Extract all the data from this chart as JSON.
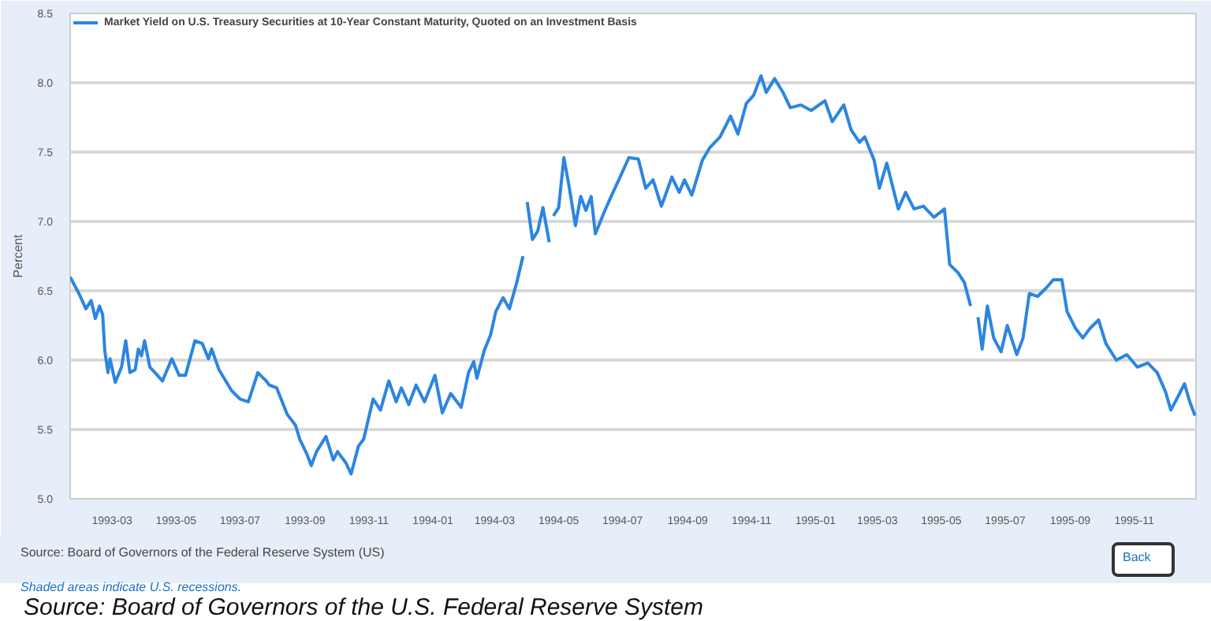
{
  "chart_data": {
    "type": "line",
    "ylabel": "Percent",
    "x": [
      "1993-01-20",
      "1993-01-29",
      "1993-02-04",
      "1993-02-09",
      "1993-02-13",
      "1993-02-17",
      "1993-02-20",
      "1993-02-22",
      "1993-02-25",
      "1993-02-27",
      "1993-03-04",
      "1993-03-10",
      "1993-03-14",
      "1993-03-18",
      "1993-03-23",
      "1993-03-26",
      "1993-03-29",
      "1993-04-01",
      "1993-04-06",
      "1993-04-11",
      "1993-04-18",
      "1993-04-27",
      "1993-05-04",
      "1993-05-10",
      "1993-05-19",
      "1993-05-26",
      "1993-06-01",
      "1993-06-04",
      "1993-06-11",
      "1993-06-23",
      "1993-07-01",
      "1993-07-09",
      "1993-07-18",
      "1993-07-26",
      "1993-07-29",
      "1993-08-05",
      "1993-08-15",
      "1993-08-23",
      "1993-08-27",
      "1993-09-03",
      "1993-09-07",
      "1993-09-12",
      "1993-09-21",
      "1993-09-28",
      "1993-10-02",
      "1993-10-10",
      "1993-10-15",
      "1993-10-22",
      "1993-10-27",
      "1993-11-05",
      "1993-11-12",
      "1993-11-20",
      "1993-11-27",
      "1993-12-02",
      "1993-12-09",
      "1993-12-16",
      "1993-12-24",
      "1994-01-03",
      "1994-01-10",
      "1994-01-18",
      "1994-01-28",
      "1994-02-04",
      "1994-02-09",
      "1994-02-12",
      "1994-02-19",
      "1994-02-25",
      "1994-03-02",
      "1994-03-09",
      "1994-03-15",
      "1994-03-22",
      "1994-03-28",
      "1994-03-30",
      "1994-04-01",
      "1994-04-06",
      "1994-04-11",
      "1994-04-16",
      "1994-04-22",
      "1994-04-24",
      "1994-04-26",
      "1994-05-01",
      "1994-05-06",
      "1994-05-11",
      "1994-05-17",
      "1994-05-22",
      "1994-05-27",
      "1994-06-01",
      "1994-06-05",
      "1994-06-13",
      "1994-06-20",
      "1994-06-28",
      "1994-07-07",
      "1994-07-16",
      "1994-07-23",
      "1994-07-30",
      "1994-08-07",
      "1994-08-17",
      "1994-08-24",
      "1994-08-29",
      "1994-09-05",
      "1994-09-15",
      "1994-09-22",
      "1994-10-02",
      "1994-10-12",
      "1994-10-19",
      "1994-10-27",
      "1994-11-03",
      "1994-11-10",
      "1994-11-15",
      "1994-11-23",
      "1994-12-01",
      "1994-12-08",
      "1994-12-18",
      "1994-12-28",
      "1995-01-10",
      "1995-01-17",
      "1995-01-28",
      "1995-02-04",
      "1995-02-12",
      "1995-02-17",
      "1995-02-26",
      "1995-03-03",
      "1995-03-10",
      "1995-03-21",
      "1995-03-28",
      "1995-04-05",
      "1995-04-14",
      "1995-04-24",
      "1995-05-04",
      "1995-05-09",
      "1995-05-17",
      "1995-05-23",
      "1995-05-29",
      "1995-06-01",
      "1995-06-05",
      "1995-06-09",
      "1995-06-14",
      "1995-06-20",
      "1995-06-27",
      "1995-07-03",
      "1995-07-12",
      "1995-07-18",
      "1995-07-24",
      "1995-08-01",
      "1995-08-09",
      "1995-08-16",
      "1995-08-24",
      "1995-08-29",
      "1995-09-06",
      "1995-09-13",
      "1995-09-20",
      "1995-09-28",
      "1995-10-05",
      "1995-10-15",
      "1995-10-25",
      "1995-11-04",
      "1995-11-14",
      "1995-11-23",
      "1995-12-01",
      "1995-12-06",
      "1995-12-13",
      "1995-12-19",
      "1995-12-24",
      "1995-12-29"
    ],
    "series": [
      {
        "name": "Market Yield on U.S. Treasury Securities at 10-Year Constant Maturity, Quoted on an Investment Basis",
        "color": "#2c85e0",
        "values": [
          6.6,
          6.47,
          6.37,
          6.43,
          6.3,
          6.39,
          6.33,
          6.07,
          5.91,
          6.01,
          5.84,
          5.95,
          6.14,
          5.91,
          5.93,
          6.08,
          6.03,
          6.14,
          5.95,
          5.91,
          5.85,
          6.01,
          5.89,
          5.89,
          6.14,
          6.12,
          6.01,
          6.08,
          5.93,
          5.78,
          5.72,
          5.7,
          5.91,
          5.85,
          5.82,
          5.8,
          5.61,
          5.53,
          5.43,
          5.32,
          5.24,
          5.34,
          5.45,
          5.28,
          5.34,
          5.26,
          5.18,
          5.38,
          5.43,
          5.72,
          5.64,
          5.85,
          5.7,
          5.8,
          5.68,
          5.82,
          5.7,
          5.89,
          5.62,
          5.76,
          5.66,
          5.91,
          5.99,
          5.87,
          6.07,
          6.18,
          6.35,
          6.45,
          6.37,
          6.56,
          6.75,
          null,
          7.14,
          6.87,
          6.93,
          7.1,
          6.85,
          null,
          7.04,
          7.1,
          7.46,
          7.25,
          6.97,
          7.18,
          7.08,
          7.18,
          6.91,
          7.06,
          7.18,
          7.31,
          7.46,
          7.45,
          7.24,
          7.3,
          7.11,
          7.32,
          7.21,
          7.3,
          7.19,
          7.44,
          7.53,
          7.61,
          7.76,
          7.63,
          7.85,
          7.91,
          8.05,
          7.93,
          8.03,
          7.93,
          7.82,
          7.84,
          7.8,
          7.87,
          7.72,
          7.84,
          7.66,
          7.57,
          7.61,
          7.44,
          7.24,
          7.42,
          7.09,
          7.21,
          7.09,
          7.11,
          7.03,
          7.09,
          6.69,
          6.63,
          6.56,
          6.39,
          null,
          6.31,
          6.08,
          6.39,
          6.16,
          6.06,
          6.25,
          6.04,
          6.16,
          6.48,
          6.46,
          6.52,
          6.58,
          6.58,
          6.35,
          6.23,
          6.16,
          6.23,
          6.29,
          6.12,
          6.0,
          6.04,
          5.95,
          5.98,
          5.91,
          5.77,
          5.64,
          5.74,
          5.83,
          5.7,
          5.6
        ]
      }
    ],
    "xlim": [
      "1993-01-20",
      "1995-12-30"
    ],
    "xticks": [
      "1993-03",
      "1993-05",
      "1993-07",
      "1993-09",
      "1993-11",
      "1994-01",
      "1994-03",
      "1994-05",
      "1994-07",
      "1994-09",
      "1994-11",
      "1995-01",
      "1995-03",
      "1995-05",
      "1995-07",
      "1995-09",
      "1995-11"
    ],
    "ylim": [
      5.0,
      8.5
    ],
    "yticks": [
      {
        "value": 5.0,
        "label": "5.0"
      },
      {
        "value": 5.5,
        "label": "5.5"
      },
      {
        "value": 6.0,
        "label": "6.0"
      },
      {
        "value": 6.5,
        "label": "6.5"
      },
      {
        "value": 7.0,
        "label": "7.0"
      },
      {
        "value": 7.5,
        "label": "7.5"
      },
      {
        "value": 8.0,
        "label": "8.0"
      },
      {
        "value": 8.5,
        "label": "8.5"
      }
    ],
    "grid": "y",
    "legend": "top left",
    "marker": "none",
    "line_style": "solid",
    "annotations": [
      "Source: Board of Governors of the Federal Reserve System (US)",
      "Shaded areas indicate U.S. recessions.",
      "Back",
      "Source: Board of Governors of the U.S. Federal Reserve System"
    ]
  }
}
